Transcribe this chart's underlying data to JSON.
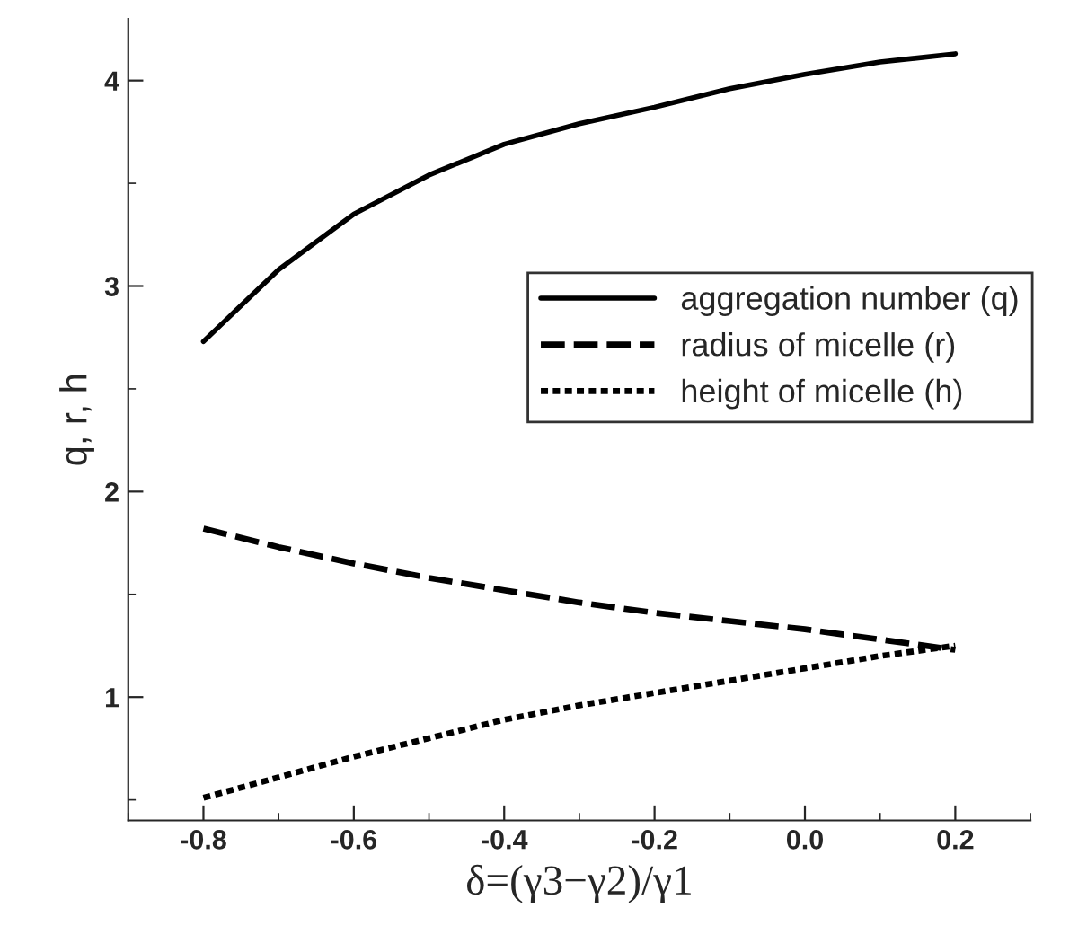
{
  "chart_data": {
    "type": "line",
    "xlabel": "δ=(γ3−γ2)/γ1",
    "ylabel": "q, r, h",
    "x": [
      -0.8,
      -0.7,
      -0.6,
      -0.5,
      -0.4,
      -0.3,
      -0.2,
      -0.1,
      0.0,
      0.1,
      0.2
    ],
    "series": [
      {
        "name": "aggregation number (q)",
        "color": "#000000",
        "line_style": "solid",
        "values": [
          2.73,
          3.08,
          3.35,
          3.54,
          3.69,
          3.79,
          3.87,
          3.96,
          4.03,
          4.09,
          4.13
        ]
      },
      {
        "name": "radius of micelle (r)",
        "color": "#000000",
        "line_style": "dashed",
        "values": [
          1.82,
          1.73,
          1.65,
          1.58,
          1.52,
          1.46,
          1.41,
          1.37,
          1.33,
          1.28,
          1.23
        ]
      },
      {
        "name": "height of micelle (h)",
        "color": "#000000",
        "line_style": "dotted",
        "values": [
          0.51,
          0.61,
          0.71,
          0.8,
          0.89,
          0.96,
          1.02,
          1.08,
          1.14,
          1.2,
          1.25
        ]
      }
    ],
    "xlim": [
      -0.9,
      0.3
    ],
    "ylim": [
      0.4,
      4.3
    ],
    "xticks": [
      {
        "value": -0.8,
        "label": "-0.8"
      },
      {
        "value": -0.6,
        "label": "-0.6"
      },
      {
        "value": -0.4,
        "label": "-0.4"
      },
      {
        "value": -0.2,
        "label": "-0.2"
      },
      {
        "value": 0.0,
        "label": "0.0"
      },
      {
        "value": 0.2,
        "label": "0.2"
      }
    ],
    "yticks": [
      1,
      2,
      3,
      4
    ],
    "grid": false,
    "legend": "center right",
    "marker": "none"
  }
}
